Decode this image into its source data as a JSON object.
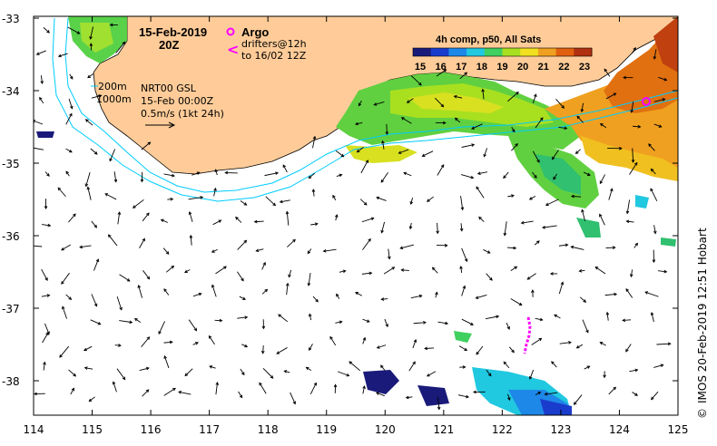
{
  "title": {
    "date": "15-Feb-2019",
    "time": "20Z"
  },
  "legend": {
    "argo_label": "Argo",
    "drifter_line1": "drifters@12h",
    "drifter_line2": "to 16/02 12Z",
    "argo_color": "#ff00ff",
    "drifter_color": "#ff00ff"
  },
  "contours": {
    "label_200": "200m",
    "label_1000": "1000m",
    "color": "#00ccff"
  },
  "currents": {
    "source": "NRT00 GSL",
    "date": "15-Feb 00:00Z",
    "scale_label": "0.5m/s (1kt 24h)"
  },
  "colorbar": {
    "title": "4h comp, p50, All Sats",
    "ticks": [
      "15",
      "16",
      "17",
      "18",
      "19",
      "20",
      "21",
      "22",
      "23"
    ],
    "colors": [
      "#1a1a7a",
      "#1a3ccc",
      "#1e88e8",
      "#20c8e0",
      "#40d060",
      "#a8e020",
      "#f0e020",
      "#f0a020",
      "#e06010",
      "#b03010"
    ]
  },
  "credit": "IMOS 20-Feb-2019 12:51 Hobart",
  "copyright": "©",
  "axes": {
    "x_ticks": [
      "114",
      "115",
      "116",
      "117",
      "118",
      "119",
      "120",
      "121",
      "122",
      "123",
      "124",
      "125"
    ],
    "y_ticks": [
      "-33",
      "-34",
      "-35",
      "-36",
      "-37",
      "-38"
    ],
    "land_color": "#ffcc99"
  }
}
